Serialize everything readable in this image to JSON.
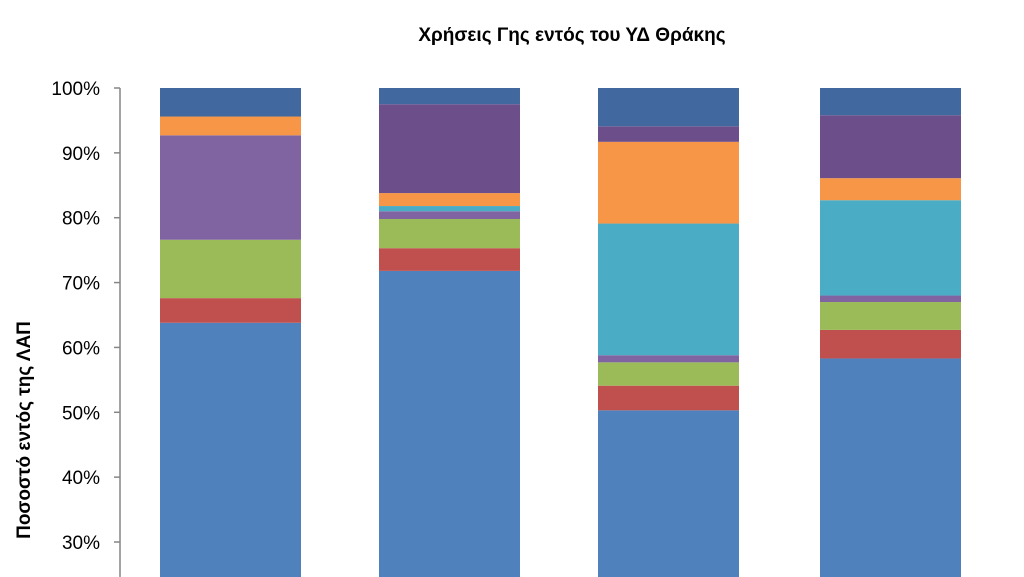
{
  "chart_data": {
    "type": "bar",
    "stacked": true,
    "title": "Χρήσεις Γης εντός του ΥΔ Θράκης",
    "xlabel": "",
    "ylabel": "Ποσοστό εντός της ΛΑΠ",
    "ylim_visible": [
      25,
      100
    ],
    "yticks": [
      "30%",
      "40%",
      "50%",
      "60%",
      "70%",
      "80%",
      "90%",
      "100%"
    ],
    "ytick_values": [
      30,
      40,
      50,
      60,
      70,
      80,
      90,
      100
    ],
    "grid": false,
    "categories": [
      "",
      "",
      "",
      ""
    ],
    "series": [
      {
        "color": "#4F81BD",
        "values": [
          63.8,
          71.8,
          50.3,
          58.3
        ]
      },
      {
        "color": "#C0504D",
        "values": [
          3.8,
          3.5,
          3.8,
          4.4
        ]
      },
      {
        "color": "#9BBB59",
        "values": [
          9.0,
          4.5,
          3.6,
          4.3
        ]
      },
      {
        "color": "#8064A2",
        "values": [
          16.1,
          1.2,
          1.1,
          1.0
        ]
      },
      {
        "color": "#4BACC6",
        "values": [
          0.0,
          0.8,
          20.3,
          14.7
        ]
      },
      {
        "color": "#F79646",
        "values": [
          2.9,
          2.0,
          12.6,
          3.4
        ]
      },
      {
        "color": "#6B4E8A",
        "values": [
          0.0,
          13.7,
          2.4,
          9.7
        ]
      },
      {
        "color": "#4169A0",
        "values": [
          4.4,
          2.5,
          5.9,
          4.2
        ]
      }
    ]
  }
}
